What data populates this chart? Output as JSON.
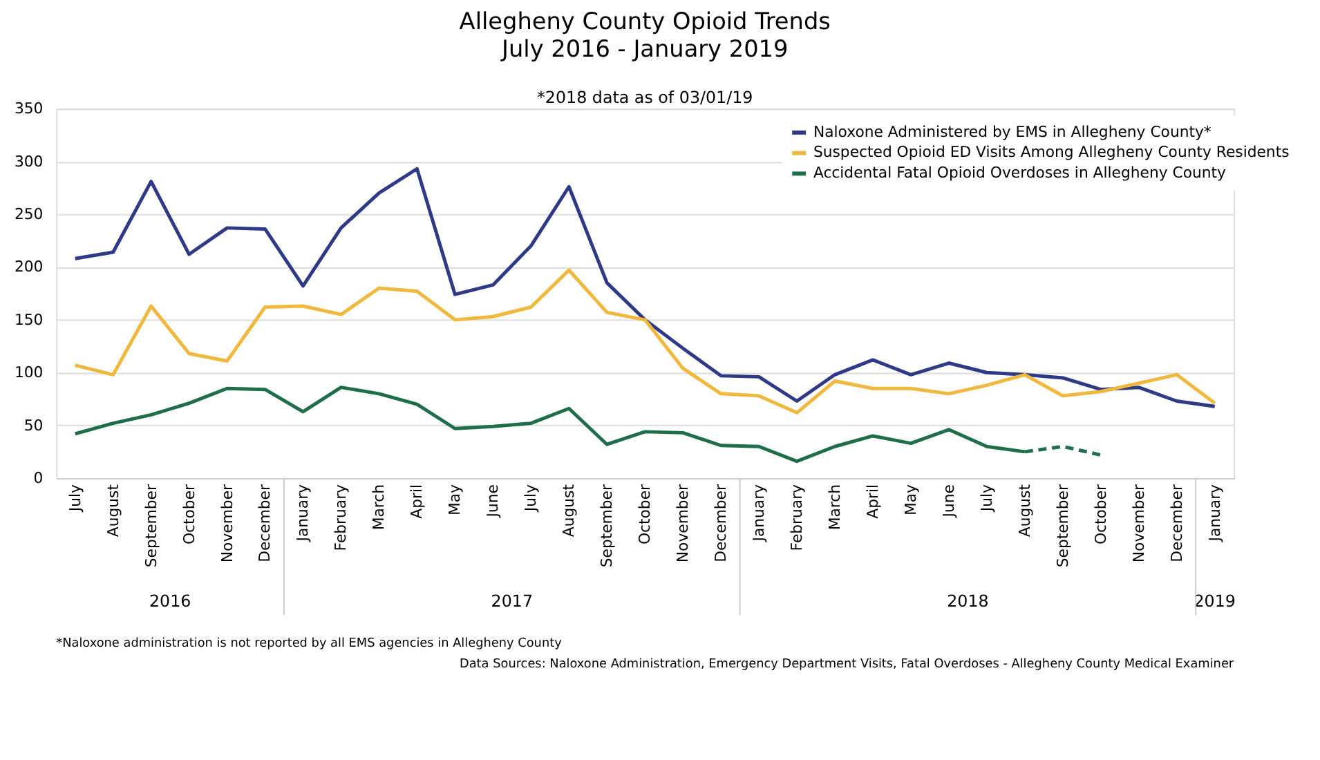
{
  "chart_data": {
    "type": "line",
    "title": "Allegheny County Opioid Trends",
    "subtitle": "July 2016 - January 2019",
    "categories": [
      "July",
      "August",
      "September",
      "October",
      "November",
      "December",
      "January",
      "February",
      "March",
      "April",
      "May",
      "June",
      "July",
      "August",
      "September",
      "October",
      "November",
      "December",
      "January",
      "February",
      "March",
      "April",
      "May",
      "June",
      "July",
      "August",
      "September",
      "October",
      "November",
      "December",
      "January"
    ],
    "series": [
      {
        "name": "Naloxone Administered by EMS in Allegheny County*",
        "color": "#2e3a87",
        "values": [
          208,
          214,
          281,
          212,
          237,
          236,
          182,
          237,
          270,
          293,
          174,
          183,
          220,
          276,
          185,
          150,
          123,
          97,
          96,
          73,
          98,
          112,
          98,
          109,
          100,
          98,
          95,
          84,
          86,
          73,
          68
        ]
      },
      {
        "name": "Suspected Opioid ED Visits Among Allegheny County Residents",
        "color": "#f0b83c",
        "values": [
          107,
          98,
          163,
          118,
          111,
          162,
          163,
          155,
          180,
          177,
          150,
          153,
          162,
          197,
          157,
          150,
          104,
          80,
          78,
          62,
          92,
          85,
          85,
          80,
          88,
          98,
          78,
          82,
          90,
          98,
          71
        ]
      },
      {
        "name": "Accidental Fatal Opioid Overdoses in Allegheny County",
        "color": "#1e6e4a",
        "values": [
          42,
          52,
          60,
          71,
          85,
          84,
          63,
          86,
          80,
          70,
          47,
          49,
          52,
          66,
          32,
          44,
          43,
          31,
          30,
          16,
          30,
          40,
          33,
          46,
          30,
          25,
          null,
          null,
          null,
          null,
          null
        ]
      },
      {
        "color": "#1e6e4a",
        "line_style": "dashed",
        "values": [
          null,
          null,
          null,
          null,
          null,
          null,
          null,
          null,
          null,
          null,
          null,
          null,
          null,
          null,
          null,
          null,
          null,
          null,
          null,
          null,
          null,
          null,
          null,
          null,
          null,
          25,
          30,
          22,
          null,
          null,
          null
        ]
      }
    ],
    "ylim": [
      0,
      350
    ],
    "yticks": [
      0,
      50,
      100,
      150,
      200,
      250,
      300,
      350
    ],
    "grid": "y",
    "legend": "top right",
    "line_style": "solid",
    "annotations": [
      "*2018 data as of 03/01/19",
      "2016",
      "2017",
      "2018",
      "2019",
      "*Naloxone administration is not reported by all EMS agencies in Allegheny County",
      "Data Sources: Naloxone Administration, Emergency Department Visits, Fatal Overdoses - Allegheny County Medical Examiner"
    ]
  }
}
